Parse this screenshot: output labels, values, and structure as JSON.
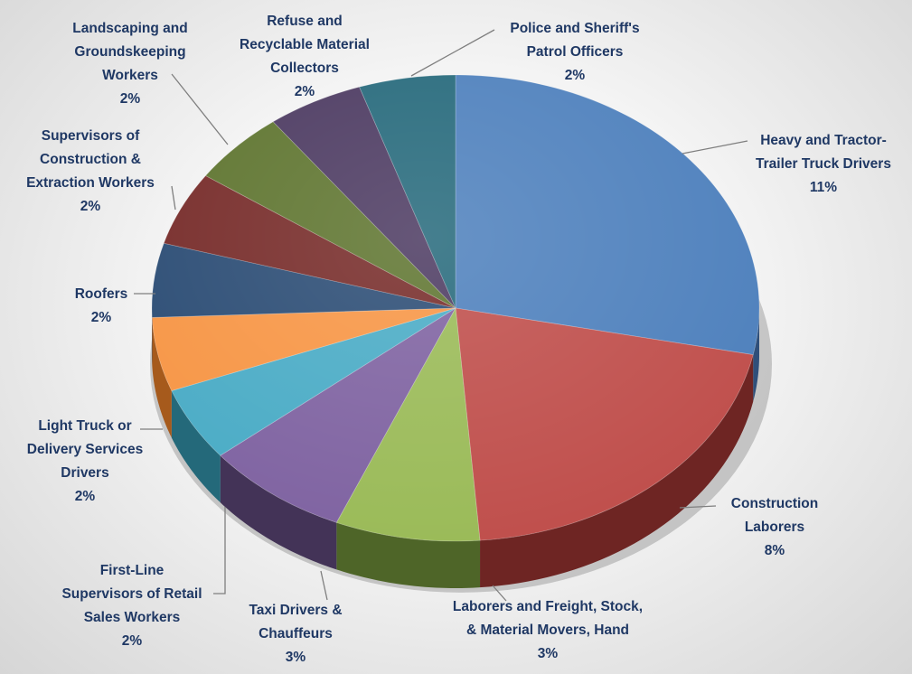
{
  "chart_data": {
    "type": "pie",
    "title": "",
    "legend": "none",
    "slices": [
      {
        "label": "Heavy and Tractor-Trailer Truck Drivers",
        "percent_label": "11%",
        "value": 11,
        "color": "#4f81bd",
        "side": "#2f4f7a"
      },
      {
        "label": "Construction Laborers",
        "percent_label": "8%",
        "value": 8,
        "color": "#c0504d",
        "side": "#6e2523"
      },
      {
        "label": "Laborers and Freight, Stock, & Material Movers, Hand",
        "percent_label": "3%",
        "value": 3,
        "color": "#9bbb59",
        "side": "#4e6528"
      },
      {
        "label": "Taxi Drivers & Chauffeurs",
        "percent_label": "3%",
        "value": 3,
        "color": "#8064a2",
        "side": "#433357"
      },
      {
        "label": "First-Line Supervisors of Retail Sales Workers",
        "percent_label": "2%",
        "value": 2,
        "color": "#4bacc6",
        "side": "#24697a"
      },
      {
        "label": "Light Truck or Delivery Services Drivers",
        "percent_label": "2%",
        "value": 2,
        "color": "#f79646",
        "side": "#a65a1c"
      },
      {
        "label": "Roofers",
        "percent_label": "2%",
        "value": 2,
        "color": "#2c4d75",
        "side": "#172a42"
      },
      {
        "label": "Supervisors of Construction & Extraction Workers",
        "percent_label": "2%",
        "value": 2,
        "color": "#772c2a",
        "side": "#3e1514"
      },
      {
        "label": "Landscaping and Groundskeeping Workers",
        "percent_label": "2%",
        "value": 2,
        "color": "#5f7530",
        "side": "#313d18"
      },
      {
        "label": "Refuse and Recyclable Material Collectors",
        "percent_label": "2%",
        "value": 2,
        "color": "#4d3b62",
        "side": "#271e33"
      },
      {
        "label": "Police and Sheriff's Patrol Officers",
        "percent_label": "2%",
        "value": 2,
        "color": "#276a7c",
        "side": "#123640"
      }
    ]
  },
  "labels": [
    {
      "lines": [
        "Heavy and Tractor-",
        "Trailer Truck Drivers",
        "11%"
      ]
    },
    {
      "lines": [
        "Construction",
        "Laborers",
        "8%"
      ]
    },
    {
      "lines": [
        "Laborers and Freight, Stock,",
        "& Material Movers, Hand",
        "3%"
      ]
    },
    {
      "lines": [
        "Taxi Drivers &",
        "Chauffeurs",
        "3%"
      ]
    },
    {
      "lines": [
        "First-Line",
        "Supervisors of Retail",
        "Sales Workers",
        "2%"
      ]
    },
    {
      "lines": [
        "Light Truck or",
        "Delivery Services",
        "Drivers",
        "2%"
      ]
    },
    {
      "lines": [
        "Roofers",
        "2%"
      ]
    },
    {
      "lines": [
        "Supervisors of",
        "Construction &",
        "Extraction Workers",
        "2%"
      ]
    },
    {
      "lines": [
        "Landscaping and",
        "Groundskeeping",
        "Workers",
        "2%"
      ]
    },
    {
      "lines": [
        "Refuse and",
        "Recyclable Material",
        "Collectors",
        "2%"
      ]
    },
    {
      "lines": [
        "Police and Sheriff's",
        "Patrol Officers",
        "2%"
      ]
    }
  ]
}
